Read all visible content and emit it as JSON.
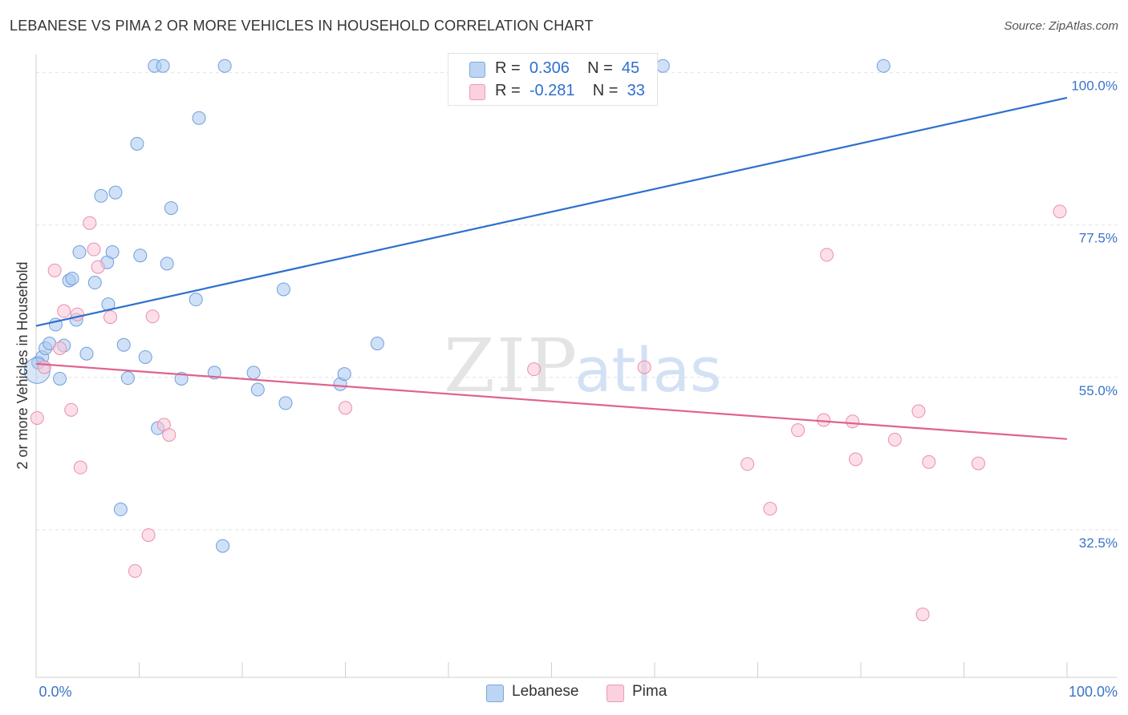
{
  "header": {
    "title": "LEBANESE VS PIMA 2 OR MORE VEHICLES IN HOUSEHOLD CORRELATION CHART",
    "source": "Source: ZipAtlas.com"
  },
  "watermark": {
    "zip": "ZIP",
    "atlas": "atlas"
  },
  "legend": {
    "r_label": "R =",
    "n_label": "N =",
    "items": [
      {
        "r": "0.306",
        "n": "45"
      },
      {
        "r": "-0.281",
        "n": "33"
      }
    ]
  },
  "chart_data": {
    "type": "scatter",
    "title": "LEBANESE VS PIMA 2 OR MORE VEHICLES IN HOUSEHOLD CORRELATION CHART",
    "ylabel": "2 or more Vehicles in Household",
    "xlabel": "",
    "xlim": [
      0,
      100
    ],
    "ylim": [
      10.7,
      101.5
    ],
    "x_tick_labels": [
      "0.0%",
      "100.0%"
    ],
    "y_ticks": [
      {
        "value": 32.5,
        "label": "32.5%"
      },
      {
        "value": 55.0,
        "label": "55.0%"
      },
      {
        "value": 77.5,
        "label": "77.5%"
      },
      {
        "value": 100.0,
        "label": "100.0%"
      }
    ],
    "grid": true,
    "legend_position": "bottom-center",
    "series": [
      {
        "name": "Lebanese",
        "color": "#a9c8f0",
        "stroke": "#6f9fdc",
        "trend": {
          "x": [
            0,
            100
          ],
          "y": [
            62.6,
            96.3
          ],
          "color": "#2e6fce"
        },
        "points": [
          [
            0.2,
            57.2
          ],
          [
            0.6,
            58.0
          ],
          [
            0.9,
            59.3
          ],
          [
            1.3,
            60.0
          ],
          [
            1.9,
            62.8
          ],
          [
            2.3,
            54.8
          ],
          [
            2.7,
            59.7
          ],
          [
            3.2,
            69.3
          ],
          [
            3.5,
            69.6
          ],
          [
            3.9,
            63.5
          ],
          [
            4.2,
            73.5
          ],
          [
            4.9,
            58.5
          ],
          [
            5.7,
            69.0
          ],
          [
            6.3,
            81.8
          ],
          [
            6.9,
            72.0
          ],
          [
            7.0,
            65.8
          ],
          [
            7.4,
            73.5
          ],
          [
            7.7,
            82.3
          ],
          [
            8.2,
            35.5
          ],
          [
            8.5,
            59.8
          ],
          [
            8.9,
            54.9
          ],
          [
            9.8,
            89.5
          ],
          [
            10.1,
            73.0
          ],
          [
            10.6,
            58.0
          ],
          [
            11.5,
            101.0
          ],
          [
            11.8,
            47.5
          ],
          [
            12.3,
            101.0
          ],
          [
            12.7,
            71.8
          ],
          [
            13.1,
            80.0
          ],
          [
            14.1,
            54.8
          ],
          [
            15.5,
            66.5
          ],
          [
            15.8,
            93.3
          ],
          [
            17.3,
            55.7
          ],
          [
            18.1,
            30.1
          ],
          [
            18.3,
            101.0
          ],
          [
            21.1,
            55.7
          ],
          [
            21.5,
            53.2
          ],
          [
            24.0,
            68.0
          ],
          [
            24.2,
            51.2
          ],
          [
            29.5,
            54.0
          ],
          [
            29.9,
            55.5
          ],
          [
            33.1,
            60.0
          ],
          [
            60.8,
            101.0
          ],
          [
            82.2,
            101.0
          ],
          [
            0.1,
            56.0
          ]
        ]
      },
      {
        "name": "Pima",
        "color": "#f9c4d6",
        "stroke": "#ea8fae",
        "trend": {
          "x": [
            0,
            100
          ],
          "y": [
            57.0,
            45.9
          ],
          "color": "#e0628f"
        },
        "points": [
          [
            0.1,
            49.0
          ],
          [
            0.8,
            56.5
          ],
          [
            1.8,
            70.8
          ],
          [
            2.3,
            59.3
          ],
          [
            2.7,
            64.8
          ],
          [
            3.4,
            50.2
          ],
          [
            4.0,
            64.3
          ],
          [
            4.3,
            41.7
          ],
          [
            5.2,
            77.8
          ],
          [
            5.6,
            73.9
          ],
          [
            6.0,
            71.3
          ],
          [
            7.2,
            63.9
          ],
          [
            9.6,
            26.4
          ],
          [
            10.9,
            31.7
          ],
          [
            11.3,
            64.0
          ],
          [
            12.4,
            48.0
          ],
          [
            12.9,
            46.5
          ],
          [
            48.3,
            56.2
          ],
          [
            30.0,
            50.5
          ],
          [
            59.0,
            56.5
          ],
          [
            69.0,
            42.2
          ],
          [
            71.2,
            35.6
          ],
          [
            73.9,
            47.2
          ],
          [
            76.4,
            48.7
          ],
          [
            76.7,
            73.1
          ],
          [
            79.2,
            48.5
          ],
          [
            79.5,
            42.9
          ],
          [
            83.3,
            45.8
          ],
          [
            85.6,
            50.0
          ],
          [
            86.0,
            20.0
          ],
          [
            86.6,
            42.5
          ],
          [
            91.4,
            42.3
          ],
          [
            99.3,
            79.5
          ]
        ]
      }
    ]
  }
}
